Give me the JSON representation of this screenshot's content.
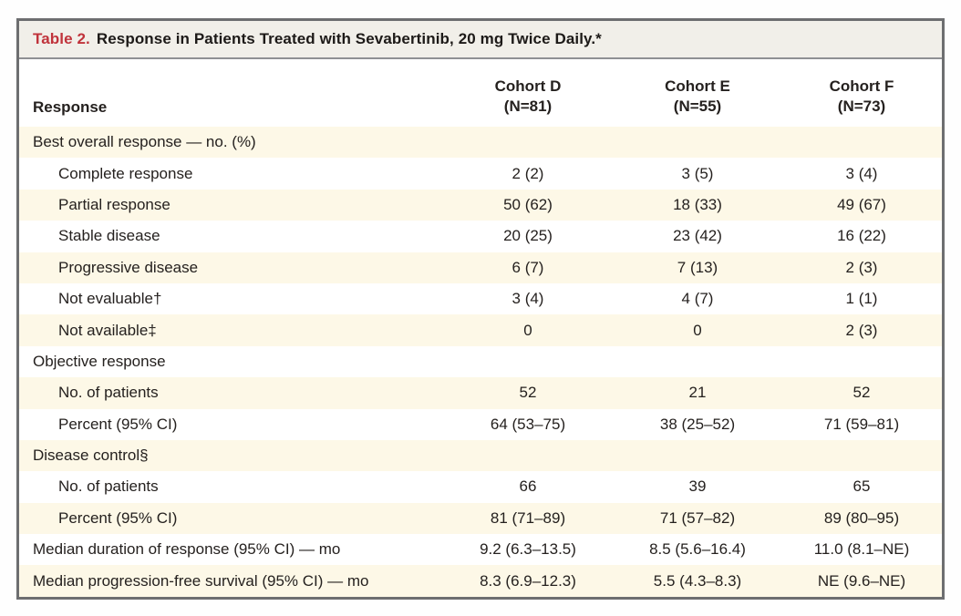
{
  "title": {
    "label": "Table 2.",
    "text": "Response in Patients Treated with Sevabertinib, 20 mg Twice Daily.*"
  },
  "header": {
    "row_label": "Response",
    "columns": [
      {
        "name": "Cohort D",
        "n": "(N=81)"
      },
      {
        "name": "Cohort E",
        "n": "(N=55)"
      },
      {
        "name": "Cohort F",
        "n": "(N=73)"
      }
    ]
  },
  "table": {
    "rows": [
      {
        "label": "Best overall response — no. (%)",
        "values": [
          "",
          "",
          ""
        ]
      },
      {
        "label": "Complete response",
        "values": [
          "2 (2)",
          "3 (5)",
          "3 (4)"
        ]
      },
      {
        "label": "Partial response",
        "values": [
          "50 (62)",
          "18 (33)",
          "49 (67)"
        ]
      },
      {
        "label": "Stable disease",
        "values": [
          "20 (25)",
          "23 (42)",
          "16 (22)"
        ]
      },
      {
        "label": "Progressive disease",
        "values": [
          "6 (7)",
          "7 (13)",
          "2 (3)"
        ]
      },
      {
        "label": "Not evaluable†",
        "values": [
          "3 (4)",
          "4 (7)",
          "1 (1)"
        ]
      },
      {
        "label": "Not available‡",
        "values": [
          "0",
          "0",
          "2 (3)"
        ]
      },
      {
        "label": "Objective response",
        "values": [
          "",
          "",
          ""
        ]
      },
      {
        "label": "No. of patients",
        "values": [
          "52",
          "21",
          "52"
        ]
      },
      {
        "label": "Percent (95% CI)",
        "values": [
          "64 (53–75)",
          "38 (25–52)",
          "71 (59–81)"
        ]
      },
      {
        "label": "Disease control§",
        "values": [
          "",
          "",
          ""
        ]
      },
      {
        "label": "No. of patients",
        "values": [
          "66",
          "39",
          "65"
        ]
      },
      {
        "label": "Percent (95% CI)",
        "values": [
          "81 (71–89)",
          "71 (57–82)",
          "89 (80–95)"
        ]
      },
      {
        "label": "Median duration of response (95% CI) — mo",
        "values": [
          "9.2 (6.3–13.5)",
          "8.5 (5.6–16.4)",
          "11.0 (8.1–NE)"
        ]
      },
      {
        "label": "Median progression-free survival (95% CI) — mo",
        "values": [
          "8.3 (6.9–12.3)",
          "5.5 (4.3–8.3)",
          "NE (9.6–NE)"
        ]
      }
    ]
  },
  "colors": {
    "accent_red": "#c0333b",
    "row_cream": "#fdf8e7",
    "title_band_bg": "#f1efe9",
    "frame_gray": "#6d6e70",
    "text": "#25211f"
  }
}
